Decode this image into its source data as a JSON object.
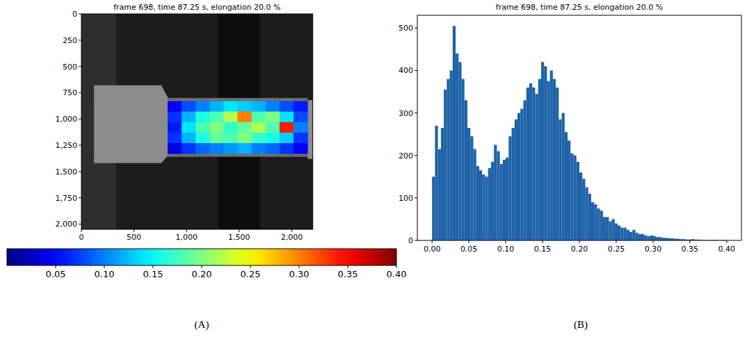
{
  "chart_data": [
    {
      "type": "heatmap",
      "title": "frame 698, time 87.25 s, elongation 20.0 %",
      "panel": "(A)",
      "xlim": [
        0,
        2200
      ],
      "ylim": [
        2050,
        0
      ],
      "xticks": [
        0,
        500,
        {
          "value": 1000,
          "label": "1,000"
        },
        {
          "value": 1500,
          "label": "1,500"
        },
        {
          "value": 2000,
          "label": "2,000"
        }
      ],
      "yticks": [
        0,
        250,
        500,
        750,
        {
          "value": 1000,
          "label": "1,000"
        },
        {
          "value": 1250,
          "label": "1,250"
        },
        {
          "value": 1500,
          "label": "1,500"
        },
        {
          "value": 1750,
          "label": "1,750"
        },
        {
          "value": 2000,
          "label": "2,000"
        }
      ],
      "x_edges": [
        820,
        953,
        1086,
        1219,
        1352,
        1485,
        1618,
        1751,
        1884,
        2017,
        2150
      ],
      "y_edges": [
        830,
        930,
        1030,
        1130,
        1230,
        1330
      ],
      "values": [
        [
          0.05,
          0.08,
          0.1,
          0.12,
          0.14,
          0.13,
          0.12,
          0.1,
          0.08,
          0.06
        ],
        [
          0.07,
          0.12,
          0.16,
          0.18,
          0.22,
          0.3,
          0.18,
          0.2,
          0.14,
          0.08
        ],
        [
          0.06,
          0.14,
          0.18,
          0.2,
          0.17,
          0.19,
          0.22,
          0.18,
          0.34,
          0.1
        ],
        [
          0.07,
          0.12,
          0.16,
          0.19,
          0.18,
          0.2,
          0.17,
          0.16,
          0.13,
          0.07
        ],
        [
          0.04,
          0.07,
          0.09,
          0.1,
          0.11,
          0.12,
          0.1,
          0.09,
          0.07,
          0.05
        ]
      ],
      "colorbar_range": [
        0,
        0.4
      ],
      "colorbar_ticks": [
        {
          "value": 0.05,
          "label": "0.05"
        },
        {
          "value": 0.1,
          "label": "0.10"
        },
        {
          "value": 0.15,
          "label": "0.15"
        },
        {
          "value": 0.2,
          "label": "0.20"
        },
        {
          "value": 0.25,
          "label": "0.25"
        },
        {
          "value": 0.3,
          "label": "0.30"
        },
        {
          "value": 0.35,
          "label": "0.35"
        },
        {
          "value": 0.4,
          "label": "0.40"
        }
      ]
    },
    {
      "type": "histogram",
      "title": "frame 698, time 87.25 s, elongation 20.0 %",
      "panel": "(B)",
      "color": "#1f63a8",
      "xlim": [
        -0.02,
        0.42
      ],
      "ylim": [
        0,
        530
      ],
      "xticks": [
        {
          "value": 0,
          "label": "0.00"
        },
        {
          "value": 0.05,
          "label": "0.05"
        },
        {
          "value": 0.1,
          "label": "0.10"
        },
        {
          "value": 0.15,
          "label": "0.15"
        },
        {
          "value": 0.2,
          "label": "0.20"
        },
        {
          "value": 0.25,
          "label": "0.25"
        },
        {
          "value": 0.3,
          "label": "0.30"
        },
        {
          "value": 0.35,
          "label": "0.35"
        },
        {
          "value": 0.4,
          "label": "0.40"
        }
      ],
      "yticks": [
        0,
        100,
        200,
        300,
        400,
        500
      ],
      "bins": [
        0,
        0.004,
        0.008,
        0.012,
        0.016,
        0.02,
        0.024,
        0.028,
        0.032,
        0.036,
        0.04,
        0.044,
        0.048,
        0.052,
        0.056,
        0.06,
        0.064,
        0.068,
        0.072,
        0.076,
        0.08,
        0.084,
        0.088,
        0.092,
        0.096,
        0.1,
        0.104,
        0.108,
        0.112,
        0.116,
        0.12,
        0.124,
        0.128,
        0.132,
        0.136,
        0.14,
        0.144,
        0.148,
        0.152,
        0.156,
        0.16,
        0.164,
        0.168,
        0.172,
        0.176,
        0.18,
        0.184,
        0.188,
        0.192,
        0.196,
        0.2,
        0.204,
        0.208,
        0.212,
        0.216,
        0.22,
        0.224,
        0.228,
        0.232,
        0.236,
        0.24,
        0.244,
        0.248,
        0.252,
        0.256,
        0.26,
        0.264,
        0.268,
        0.272,
        0.276,
        0.28,
        0.284,
        0.288,
        0.292,
        0.296,
        0.3,
        0.304,
        0.308,
        0.312,
        0.316,
        0.32,
        0.324,
        0.328,
        0.332,
        0.336,
        0.34,
        0.344,
        0.348,
        0.352,
        0.356,
        0.36,
        0.364,
        0.368,
        0.372,
        0.376,
        0.38,
        0.384,
        0.388,
        0.392,
        0.396,
        0.4
      ],
      "counts": [
        150,
        270,
        215,
        265,
        355,
        380,
        400,
        505,
        440,
        420,
        380,
        330,
        265,
        245,
        215,
        175,
        165,
        155,
        150,
        170,
        185,
        225,
        210,
        180,
        190,
        195,
        245,
        265,
        285,
        300,
        310,
        330,
        360,
        370,
        360,
        345,
        380,
        420,
        410,
        375,
        400,
        380,
        360,
        285,
        300,
        255,
        235,
        205,
        200,
        185,
        160,
        145,
        125,
        110,
        90,
        85,
        75,
        70,
        55,
        55,
        45,
        50,
        40,
        35,
        30,
        30,
        25,
        20,
        25,
        18,
        15,
        15,
        12,
        10,
        12,
        10,
        8,
        8,
        6,
        6,
        5,
        5,
        4,
        4,
        3,
        3,
        2,
        2,
        3,
        2,
        2,
        1,
        1,
        1,
        1,
        1,
        1,
        0,
        1,
        1
      ]
    }
  ]
}
